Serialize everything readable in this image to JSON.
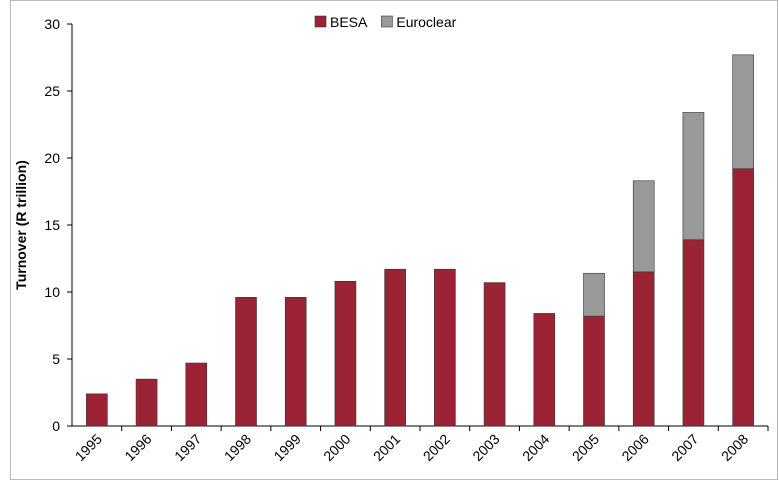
{
  "chart_data": {
    "type": "stacked_bar",
    "y_label": "Turnover (R trillion)",
    "categories": [
      "1995",
      "1996",
      "1997",
      "1998",
      "1999",
      "2000",
      "2001",
      "2002",
      "2003",
      "2004",
      "2005",
      "2006",
      "2007",
      "2008"
    ],
    "series": [
      {
        "name": "BESA",
        "color": "#9b2335",
        "values": [
          2.4,
          3.5,
          4.7,
          9.6,
          9.6,
          10.8,
          11.7,
          11.7,
          10.7,
          8.4,
          8.2,
          11.5,
          13.9,
          19.2
        ]
      },
      {
        "name": "Euroclear",
        "color": "#999999",
        "values": [
          null,
          null,
          null,
          null,
          null,
          null,
          null,
          null,
          null,
          null,
          3.2,
          6.8,
          9.5,
          8.5
        ]
      }
    ],
    "ylim": [
      0,
      30
    ],
    "yticks": [
      0,
      5,
      10,
      15,
      20,
      25,
      30
    ],
    "legend": "top"
  }
}
